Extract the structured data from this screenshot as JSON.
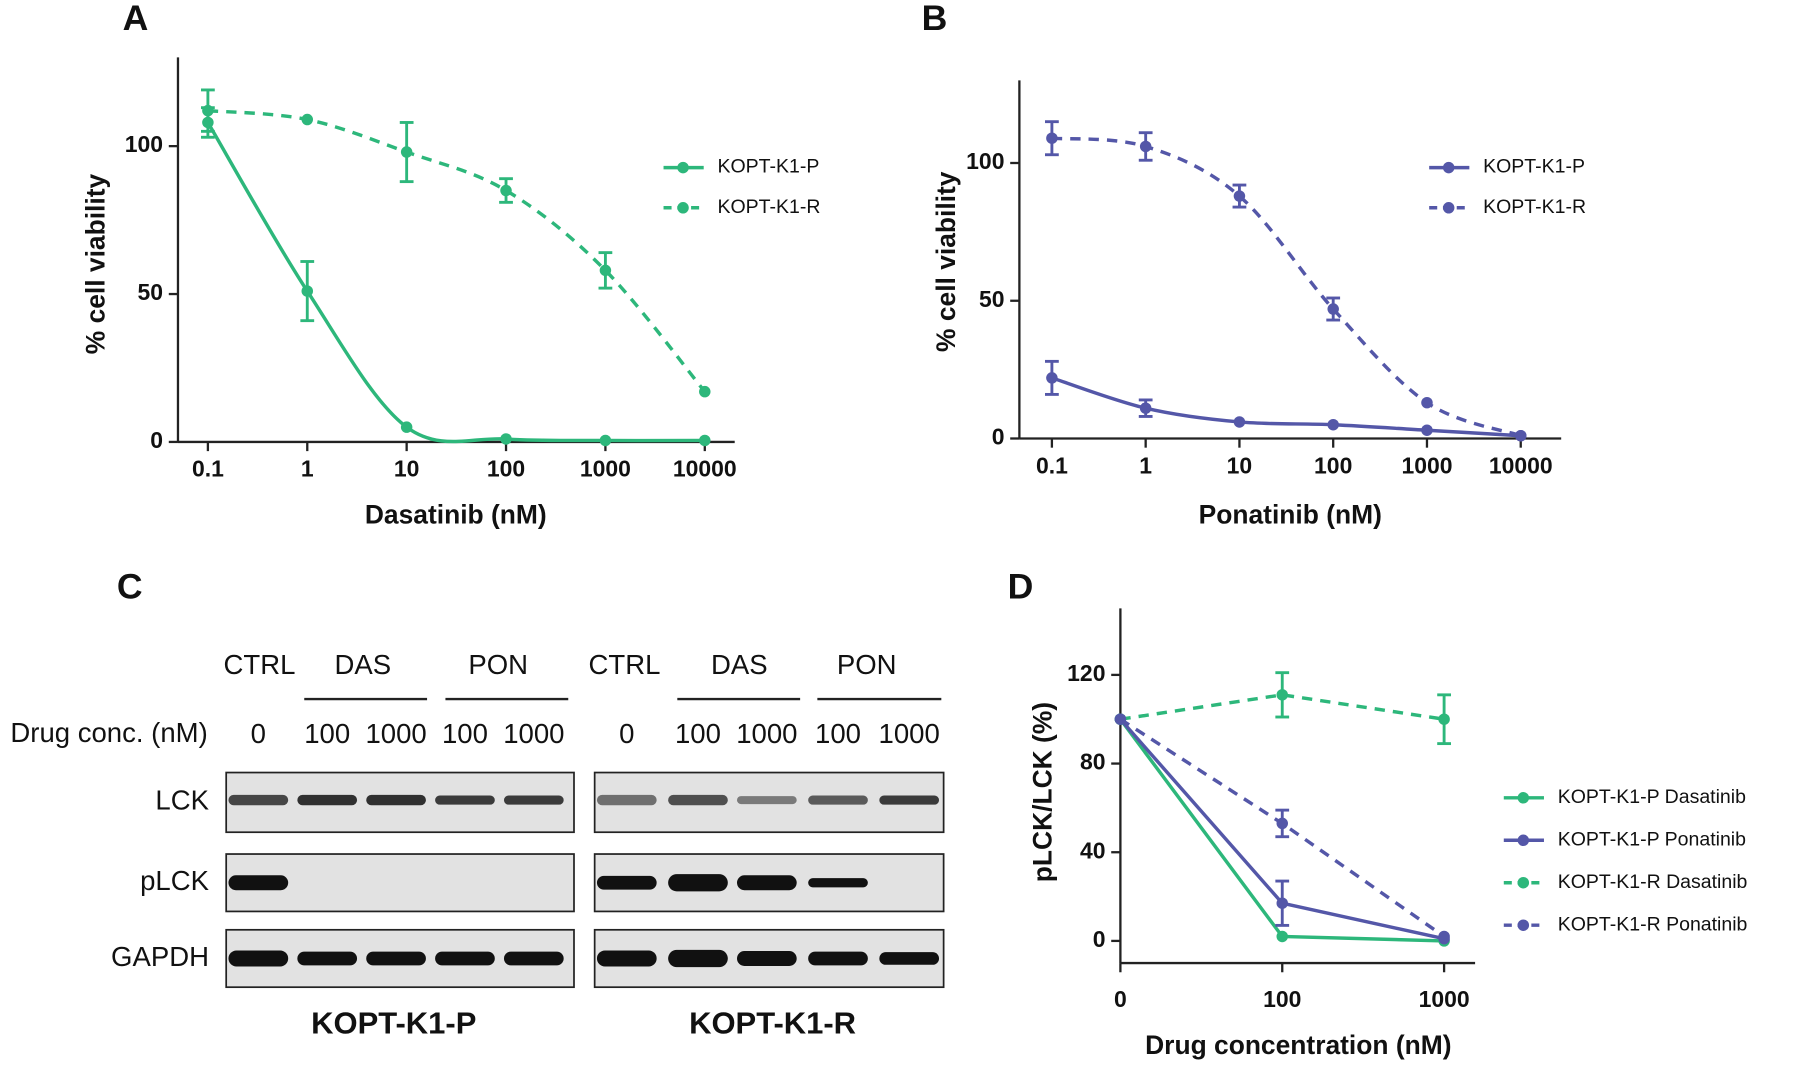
{
  "chart_data": [
    {
      "label": "A",
      "type": "line",
      "xscale": "log",
      "smooth": true,
      "x": [
        0.1,
        1,
        10,
        100,
        1000,
        10000
      ],
      "xlim": [
        0.05,
        20000
      ],
      "xticks": [
        0.1,
        1,
        10,
        100,
        1000,
        10000
      ],
      "ylim": [
        0,
        130
      ],
      "yticks": [
        0,
        50,
        100
      ],
      "xlabel": "Dasatinib (nM)",
      "ylabel": "% cell viability",
      "legend": "upper right",
      "series": [
        {
          "name": "KOPT-K1-P",
          "color": "#2db77b",
          "linestyle": "solid",
          "values": [
            108,
            51,
            5,
            1,
            0.5,
            0.5
          ],
          "errors": [
            5,
            10,
            null,
            null,
            null,
            null
          ]
        },
        {
          "name": "KOPT-K1-R",
          "color": "#2db77b",
          "linestyle": "dashed",
          "values": [
            112,
            109,
            98,
            85,
            58,
            17
          ],
          "errors": [
            7,
            null,
            10,
            4,
            6,
            null
          ]
        }
      ]
    },
    {
      "label": "B",
      "type": "line",
      "xscale": "log",
      "smooth": true,
      "x": [
        0.1,
        1,
        10,
        100,
        1000,
        10000
      ],
      "xlim": [
        0.045,
        27000
      ],
      "xticks": [
        0.1,
        1,
        10,
        100,
        1000,
        10000
      ],
      "ylim": [
        0,
        130
      ],
      "yticks": [
        0,
        50,
        100
      ],
      "xlabel": "Ponatinib (nM)",
      "ylabel": "% cell viability",
      "legend": "upper right",
      "series": [
        {
          "name": "KOPT-K1-P",
          "color": "#5457a8",
          "linestyle": "solid",
          "values": [
            22,
            11,
            6,
            5,
            3,
            1
          ],
          "errors": [
            6,
            3,
            null,
            null,
            null,
            null
          ]
        },
        {
          "name": "KOPT-K1-R",
          "color": "#5457a8",
          "linestyle": "dashed",
          "values": [
            109,
            106,
            88,
            47,
            13,
            1
          ],
          "errors": [
            6,
            5,
            4,
            4,
            null,
            null
          ]
        }
      ]
    },
    {
      "label": "D",
      "type": "line",
      "smooth": false,
      "categories": [
        "0",
        "100",
        "1000"
      ],
      "ylim": [
        -10,
        150
      ],
      "yticks": [
        0,
        40,
        80,
        120
      ],
      "xlabel": "Drug concentration (nM)",
      "ylabel": "pLCK/LCK (%)",
      "legend": "right",
      "series": [
        {
          "name": "KOPT-K1-P Dasatinib",
          "color": "#2db77b",
          "linestyle": "solid",
          "values": [
            100,
            2,
            0
          ],
          "errors": [
            null,
            null,
            null
          ]
        },
        {
          "name": "KOPT-K1-P Ponatinib",
          "color": "#5457a8",
          "linestyle": "solid",
          "values": [
            100,
            17,
            1
          ],
          "errors": [
            null,
            10,
            null
          ]
        },
        {
          "name": "KOPT-K1-R Dasatinib",
          "color": "#2db77b",
          "linestyle": "dashed",
          "values": [
            100,
            111,
            100
          ],
          "errors": [
            null,
            10,
            11
          ]
        },
        {
          "name": "KOPT-K1-R Ponatinib",
          "color": "#5457a8",
          "linestyle": "dashed",
          "values": [
            100,
            53,
            2
          ],
          "errors": [
            null,
            6,
            null
          ]
        }
      ]
    }
  ],
  "blot": {
    "label": "C",
    "conc_label": "Drug conc. (nM)",
    "rows": [
      "LCK",
      "pLCK",
      "GAPDH"
    ],
    "groups": [
      {
        "name": "KOPT-K1-P",
        "headers": [
          "CTRL",
          "DAS",
          "PON"
        ],
        "concentrations": [
          0,
          100,
          1000,
          100,
          1000
        ]
      },
      {
        "name": "KOPT-K1-R",
        "headers": [
          "CTRL",
          "DAS",
          "PON"
        ],
        "concentrations": [
          0,
          100,
          1000,
          100,
          1000
        ]
      }
    ]
  }
}
